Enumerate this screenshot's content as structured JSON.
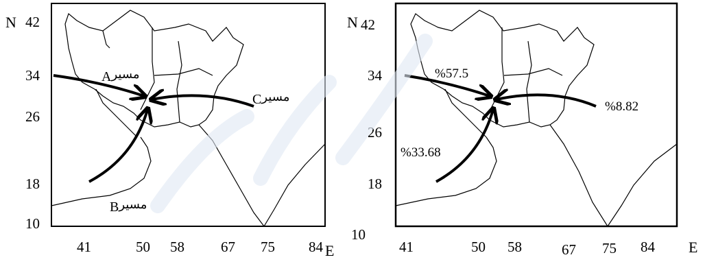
{
  "left_map": {
    "axis": {
      "north_label": "N",
      "east_label": "E",
      "lat_ticks": [
        "42",
        "34",
        "26",
        "18",
        "10"
      ],
      "lon_ticks": [
        "41",
        "50",
        "58",
        "67",
        "75",
        "84"
      ]
    },
    "routes": [
      {
        "name": "مسیر",
        "letter": "A"
      },
      {
        "name": "مسیر",
        "letter": "B"
      },
      {
        "name": "مسیر",
        "letter": "C"
      }
    ]
  },
  "right_map": {
    "axis": {
      "north_label": "N",
      "east_label": "E",
      "lat_ticks": [
        "42",
        "34",
        "26",
        "18",
        "10"
      ],
      "lon_ticks": [
        "41",
        "50",
        "58",
        "67",
        "75",
        "84"
      ]
    },
    "percentages": [
      {
        "text": "%57.5"
      },
      {
        "text": "%33.68"
      },
      {
        "text": "%8.82"
      }
    ]
  },
  "colors": {
    "ink": "#000000",
    "watermark": "#dfe8f3"
  }
}
